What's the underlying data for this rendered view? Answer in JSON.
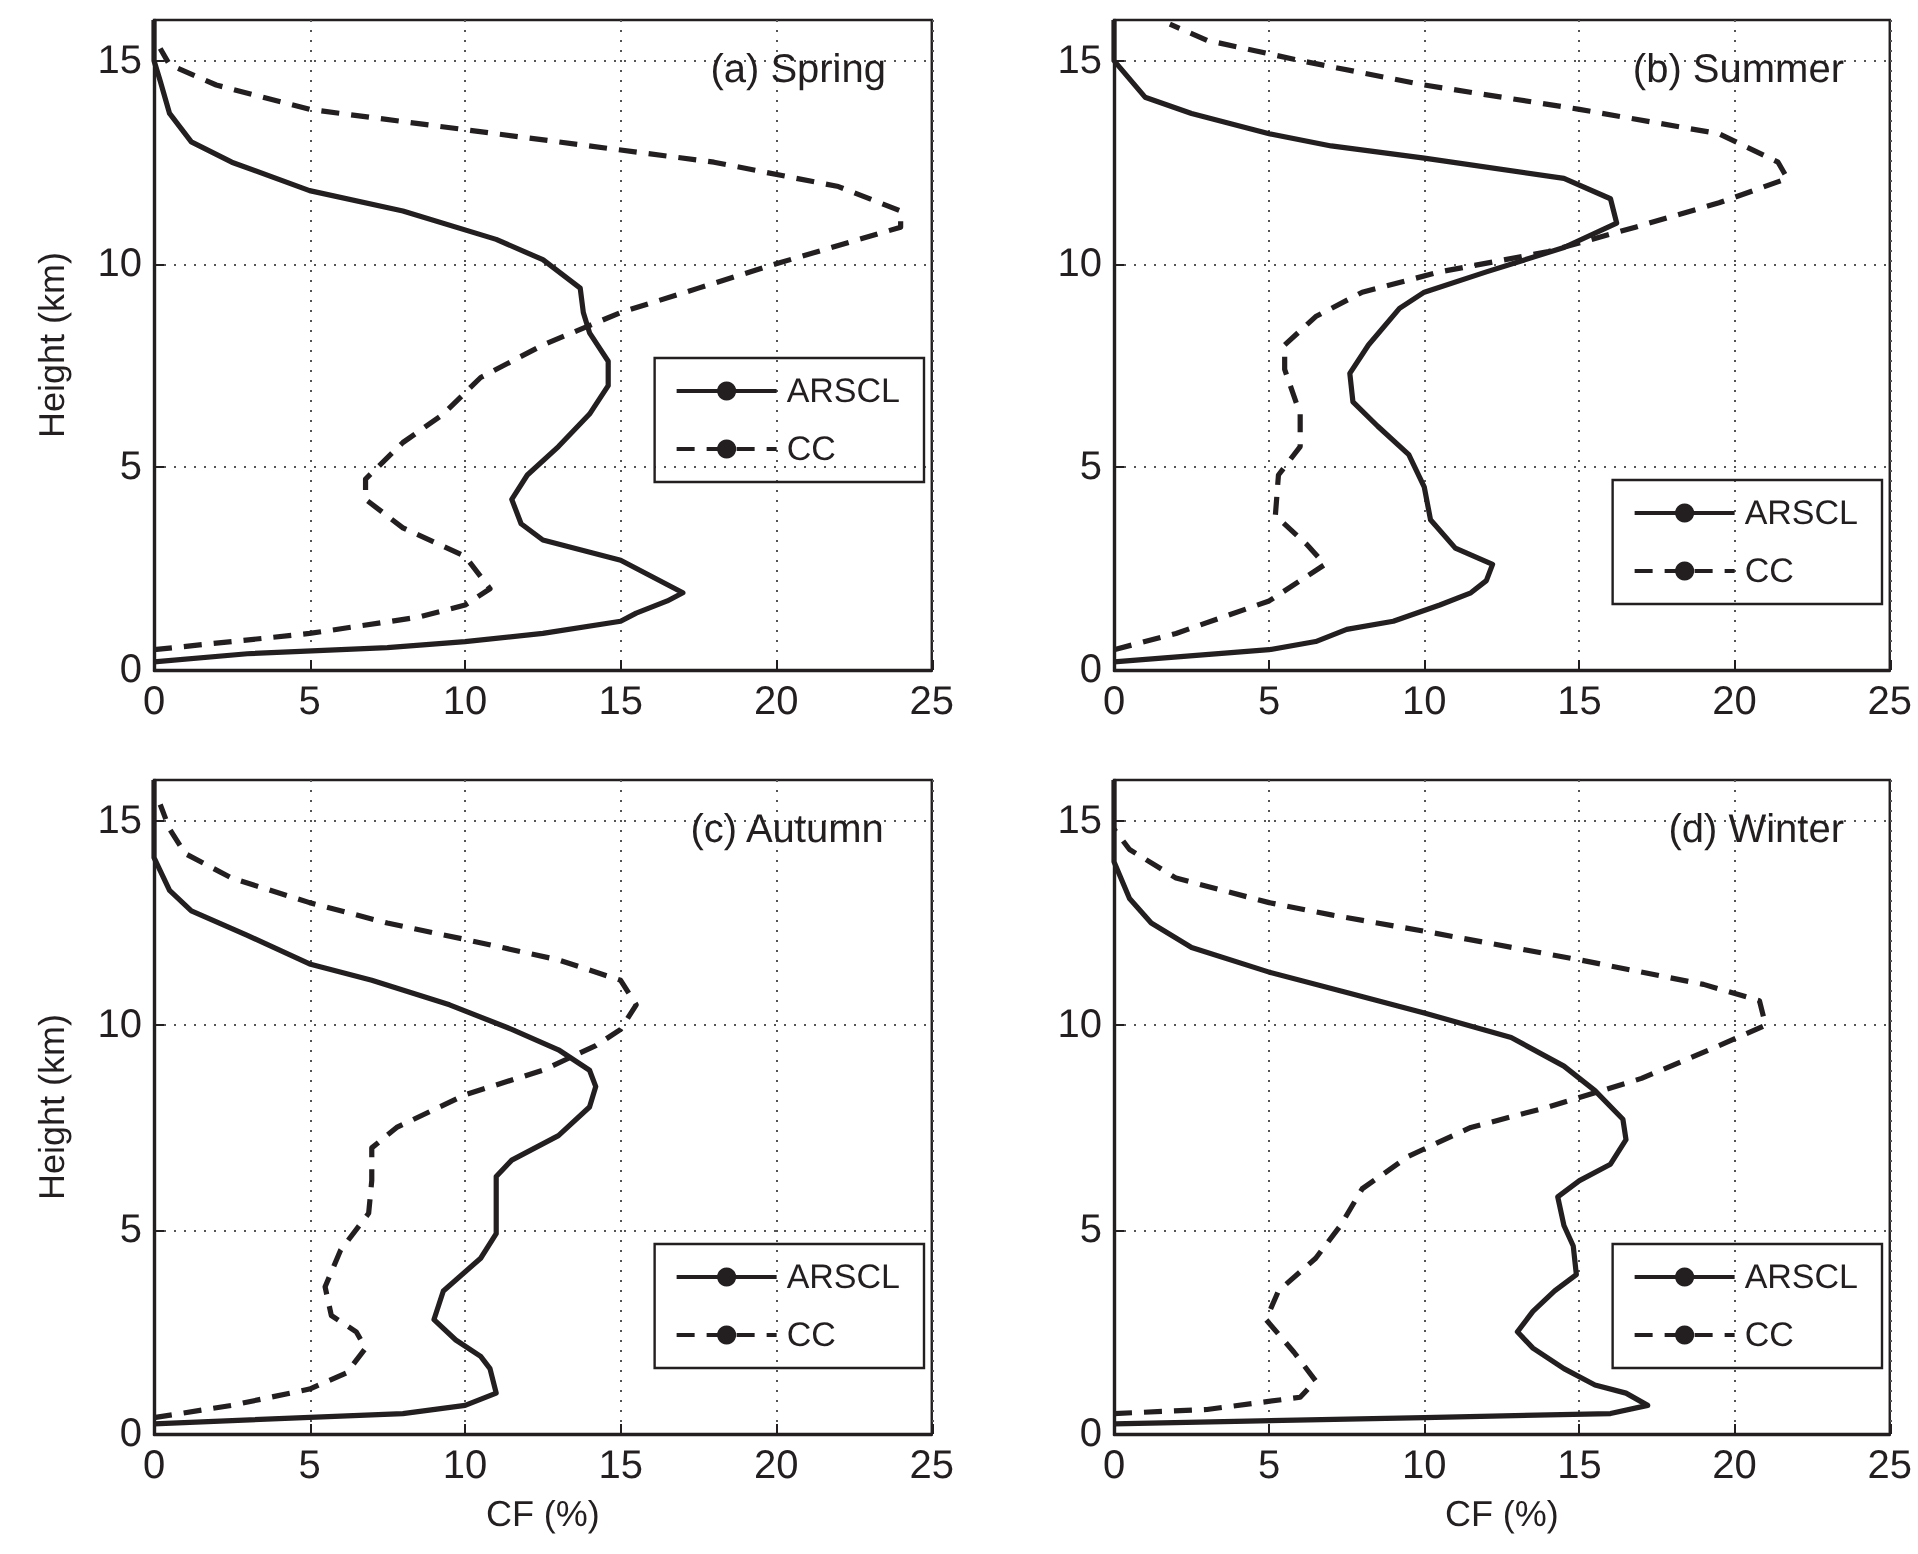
{
  "chart_data": [
    {
      "type": "line",
      "title": "(a) Spring",
      "ylabel": "Height (km)",
      "xlim": [
        0,
        25
      ],
      "xticks": [
        0,
        5,
        10,
        15,
        20,
        25
      ],
      "ylim": [
        0,
        16
      ],
      "yticks": [
        0,
        5,
        10,
        15
      ],
      "grid": true,
      "legend": "right",
      "marker": "none",
      "series": [
        {
          "name": "ARSCL",
          "color": "#231f20",
          "line_style": "solid",
          "x": [
            0,
            3,
            7.5,
            10,
            12.5,
            15,
            15.5,
            16.5,
            17,
            16,
            15,
            12.5,
            11.8,
            11.5,
            12,
            13,
            14,
            14.6,
            14.6,
            14,
            13.8,
            13.7,
            12.5,
            11,
            8,
            5,
            2.5,
            1.2,
            0.5,
            0.2,
            0,
            0
          ],
          "values": [
            0.2,
            0.4,
            0.55,
            0.7,
            0.9,
            1.2,
            1.4,
            1.7,
            1.9,
            2.3,
            2.7,
            3.2,
            3.6,
            4.2,
            4.8,
            5.5,
            6.3,
            7,
            7.6,
            8.3,
            8.8,
            9.4,
            10.1,
            10.6,
            11.3,
            11.8,
            12.5,
            13,
            13.7,
            14.5,
            15,
            16
          ]
        },
        {
          "name": "CC",
          "color": "#231f20",
          "line_style": "dashed",
          "x": [
            0,
            5,
            8.5,
            10,
            10.8,
            10,
            8,
            6.8,
            6.8,
            8,
            9.3,
            10.5,
            12.5,
            15,
            17.5,
            20,
            24,
            24,
            22,
            18,
            13,
            9,
            5,
            2,
            0.5,
            0.2
          ],
          "values": [
            0.5,
            0.9,
            1.3,
            1.6,
            2,
            2.8,
            3.5,
            4.2,
            4.7,
            5.6,
            6.3,
            7.2,
            8,
            8.8,
            9.4,
            10,
            10.9,
            11.3,
            11.9,
            12.5,
            13,
            13.4,
            13.8,
            14.4,
            14.9,
            15.3
          ]
        }
      ]
    },
    {
      "type": "line",
      "title": "(b) Summer",
      "xlim": [
        0,
        25
      ],
      "xticks": [
        0,
        5,
        10,
        15,
        20,
        25
      ],
      "ylim": [
        0,
        16
      ],
      "yticks": [
        0,
        5,
        10,
        15
      ],
      "grid": true,
      "legend": "bottom right",
      "marker": "none",
      "series": [
        {
          "name": "ARSCL",
          "color": "#231f20",
          "line_style": "solid",
          "x": [
            0,
            5,
            6.5,
            7.5,
            9,
            10.5,
            11.5,
            12,
            12.2,
            11,
            10.2,
            10,
            9.5,
            8.5,
            7.7,
            7.6,
            8.2,
            9.2,
            10,
            12,
            14.5,
            16.2,
            16,
            14.5,
            10,
            7,
            5,
            2.5,
            1,
            0,
            0
          ],
          "values": [
            0.2,
            0.5,
            0.7,
            1,
            1.2,
            1.6,
            1.9,
            2.2,
            2.6,
            3,
            3.7,
            4.5,
            5.3,
            6,
            6.6,
            7.3,
            8,
            8.9,
            9.3,
            9.8,
            10.4,
            11,
            11.6,
            12.1,
            12.6,
            12.9,
            13.2,
            13.7,
            14.1,
            15,
            16
          ]
        },
        {
          "name": "CC",
          "color": "#231f20",
          "line_style": "dashed",
          "x": [
            0,
            2,
            5,
            6.8,
            6.2,
            5.2,
            5.3,
            6,
            6,
            5.5,
            5.5,
            6.5,
            8,
            10.5,
            14,
            16.8,
            19.5,
            21.7,
            21.4,
            19.5,
            15,
            10,
            6,
            3,
            1.8
          ],
          "values": [
            0.5,
            0.9,
            1.7,
            2.6,
            3.1,
            3.8,
            4.8,
            5.5,
            6.3,
            7.4,
            8,
            8.7,
            9.3,
            9.8,
            10.3,
            10.9,
            11.5,
            12.1,
            12.5,
            13.2,
            13.8,
            14.4,
            15,
            15.5,
            15.9
          ]
        }
      ]
    },
    {
      "type": "line",
      "title": "(c) Autumn",
      "xlabel": "CF (%)",
      "ylabel": "Height (km)",
      "xlim": [
        0,
        25
      ],
      "xticks": [
        0,
        5,
        10,
        15,
        20,
        25
      ],
      "ylim": [
        0,
        16
      ],
      "yticks": [
        0,
        5,
        10,
        15
      ],
      "grid": true,
      "legend": "bottom right",
      "marker": "none",
      "series": [
        {
          "name": "ARSCL",
          "color": "#231f20",
          "line_style": "solid",
          "x": [
            0,
            8,
            10,
            11,
            10.9,
            10.8,
            10.5,
            9.7,
            9,
            9.3,
            10.5,
            11,
            11,
            11,
            11.5,
            13,
            14,
            14.2,
            14,
            13,
            11.5,
            9.5,
            7,
            5,
            3,
            1.2,
            0.5,
            0,
            0
          ],
          "values": [
            0.25,
            0.5,
            0.7,
            1,
            1.3,
            1.6,
            1.9,
            2.3,
            2.8,
            3.5,
            4.3,
            4.9,
            5.6,
            6.3,
            6.7,
            7.3,
            8,
            8.5,
            8.9,
            9.4,
            9.9,
            10.5,
            11.1,
            11.5,
            12.2,
            12.8,
            13.3,
            14.1,
            16
          ]
        },
        {
          "name": "CC",
          "color": "#231f20",
          "line_style": "dashed",
          "x": [
            0,
            2.5,
            5,
            6.2,
            6.8,
            6.5,
            5.7,
            5.5,
            6,
            6.9,
            7,
            7,
            7.8,
            10,
            12.5,
            14.2,
            15,
            15.5,
            15,
            13,
            10,
            7.5,
            5,
            2.5,
            1,
            0.5,
            0.2
          ],
          "values": [
            0.4,
            0.7,
            1.1,
            1.5,
            2.1,
            2.5,
            2.9,
            3.6,
            4.5,
            5.4,
            6.2,
            7,
            7.5,
            8.3,
            8.9,
            9.5,
            9.9,
            10.5,
            11.1,
            11.6,
            12.1,
            12.5,
            13,
            13.6,
            14.2,
            14.8,
            15.4
          ]
        }
      ]
    },
    {
      "type": "line",
      "title": "(d) Winter",
      "xlabel": "CF (%)",
      "xlim": [
        0,
        25
      ],
      "xticks": [
        0,
        5,
        10,
        15,
        20,
        25
      ],
      "ylim": [
        0,
        16
      ],
      "yticks": [
        0,
        5,
        10,
        15
      ],
      "grid": true,
      "legend": "bottom right",
      "marker": "none",
      "series": [
        {
          "name": "ARSCL",
          "color": "#231f20",
          "line_style": "solid",
          "x": [
            0,
            10,
            16,
            17.2,
            16.5,
            15.5,
            14.5,
            13.5,
            13,
            13.5,
            14.2,
            14.9,
            14.8,
            14.5,
            14.3,
            15,
            16,
            16.5,
            16.4,
            15.5,
            14.5,
            12.8,
            10,
            7.5,
            5,
            2.5,
            1.2,
            0.5,
            0,
            0
          ],
          "values": [
            0.25,
            0.4,
            0.5,
            0.7,
            1,
            1.2,
            1.6,
            2.1,
            2.5,
            3,
            3.5,
            3.9,
            4.6,
            5.1,
            5.8,
            6.2,
            6.6,
            7.2,
            7.7,
            8.4,
            9,
            9.7,
            10.3,
            10.8,
            11.3,
            11.9,
            12.5,
            13.1,
            14,
            16
          ]
        },
        {
          "name": "CC",
          "color": "#231f20",
          "line_style": "dashed",
          "x": [
            0,
            3,
            6,
            6.5,
            5.8,
            4.9,
            5.3,
            6.5,
            7.3,
            8,
            9.5,
            11.5,
            14,
            17,
            19.5,
            21,
            20.8,
            19,
            15,
            10,
            7,
            5,
            2,
            0.5,
            0
          ],
          "values": [
            0.5,
            0.6,
            0.9,
            1.3,
            2,
            2.8,
            3.5,
            4.3,
            5.1,
            6,
            6.8,
            7.5,
            8,
            8.7,
            9.5,
            10,
            10.6,
            11,
            11.6,
            12.3,
            12.7,
            13,
            13.6,
            14.3,
            14.8
          ]
        }
      ]
    }
  ]
}
